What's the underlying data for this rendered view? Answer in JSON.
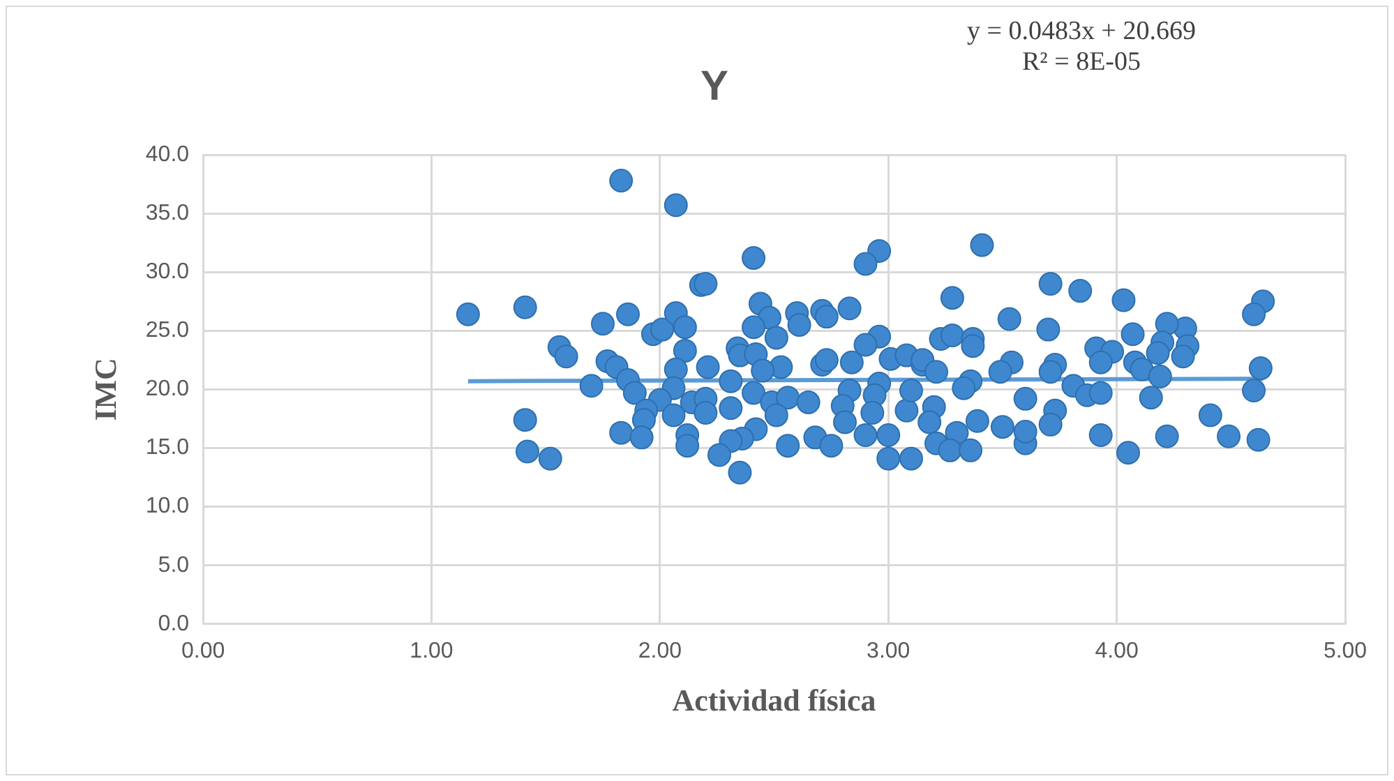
{
  "chart_data": {
    "type": "scatter",
    "title": "Y",
    "xlabel": "Actividad física",
    "ylabel": "IMC",
    "annotations": [
      "y = 0.0483x + 20.669",
      "R² = 8E-05"
    ],
    "xlim": [
      0,
      5
    ],
    "xticks": [
      {
        "value": 0,
        "label": "0.00"
      },
      {
        "value": 1,
        "label": "1.00"
      },
      {
        "value": 2,
        "label": "2.00"
      },
      {
        "value": 3,
        "label": "3.00"
      },
      {
        "value": 4,
        "label": "4.00"
      },
      {
        "value": 5,
        "label": "5.00"
      }
    ],
    "ylim": [
      0,
      40
    ],
    "yticks": [
      {
        "value": 0,
        "label": "0.0"
      },
      {
        "value": 5,
        "label": "5.0"
      },
      {
        "value": 10,
        "label": "10.0"
      },
      {
        "value": 15,
        "label": "15.0"
      },
      {
        "value": 20,
        "label": "20.0"
      },
      {
        "value": 25,
        "label": "25.0"
      },
      {
        "value": 30,
        "label": "30.0"
      },
      {
        "value": 35,
        "label": "35.0"
      },
      {
        "value": 40,
        "label": "40.0"
      }
    ],
    "grid": true,
    "legend": false,
    "series": [
      {
        "marker": "circle",
        "color": "#3f88cf",
        "x": [
          1.83,
          2.07,
          1.16,
          1.41,
          1.75,
          1.86,
          1.97,
          2.01,
          2.07,
          2.11,
          2.18,
          1.56,
          1.59,
          2.11,
          1.77,
          1.81,
          1.7,
          1.86,
          1.89,
          2.07,
          2.06,
          2.0,
          1.94,
          1.93,
          2.06,
          2.14,
          1.41,
          1.42,
          1.52,
          1.83,
          1.92,
          2.12,
          2.12,
          2.41,
          2.2,
          2.96,
          2.9,
          2.44,
          2.48,
          2.41,
          2.51,
          2.6,
          2.61,
          2.71,
          2.83,
          2.73,
          2.34,
          2.35,
          2.42,
          2.96,
          2.9,
          3.01,
          3.08,
          3.15,
          2.84,
          2.71,
          2.73,
          2.53,
          2.45,
          2.21,
          2.31,
          2.41,
          2.2,
          2.2,
          2.31,
          2.49,
          2.56,
          2.51,
          2.65,
          2.83,
          2.8,
          2.96,
          2.94,
          2.93,
          2.81,
          2.9,
          3.0,
          3.08,
          3.1,
          2.42,
          2.36,
          2.31,
          2.26,
          2.35,
          2.56,
          2.68,
          2.75,
          3.0,
          3.1,
          3.41,
          3.71,
          3.84,
          4.03,
          3.28,
          3.53,
          3.7,
          3.23,
          3.28,
          3.37,
          3.37,
          3.91,
          3.98,
          3.93,
          4.07,
          4.08,
          3.54,
          3.49,
          3.73,
          3.71,
          3.15,
          3.21,
          3.36,
          3.33,
          3.81,
          3.87,
          3.93,
          3.6,
          3.73,
          3.71,
          3.2,
          3.18,
          3.39,
          3.5,
          3.3,
          3.21,
          3.27,
          3.36,
          3.6,
          3.6,
          3.93,
          4.05,
          4.64,
          4.6,
          4.3,
          4.22,
          4.2,
          4.18,
          4.31,
          4.29,
          4.11,
          4.19,
          4.63,
          4.6,
          4.15,
          4.41,
          4.22,
          4.49,
          4.62
        ],
        "values": [
          37.8,
          35.7,
          26.4,
          27.0,
          25.6,
          26.4,
          24.7,
          25.1,
          26.5,
          25.3,
          28.9,
          23.6,
          22.8,
          23.3,
          22.4,
          21.9,
          20.3,
          20.8,
          19.7,
          21.7,
          20.1,
          19.1,
          18.2,
          17.4,
          17.8,
          18.9,
          17.4,
          14.7,
          14.1,
          16.3,
          15.9,
          16.1,
          15.2,
          31.2,
          29.0,
          31.8,
          30.7,
          27.3,
          26.1,
          25.3,
          24.4,
          26.5,
          25.5,
          26.7,
          26.9,
          26.2,
          23.5,
          22.9,
          23.0,
          24.5,
          23.8,
          22.6,
          22.9,
          22.1,
          22.3,
          22.1,
          22.5,
          21.9,
          21.6,
          21.9,
          20.7,
          19.7,
          19.2,
          18.0,
          18.4,
          18.9,
          19.3,
          17.8,
          18.9,
          19.9,
          18.6,
          20.5,
          19.5,
          18.0,
          17.2,
          16.1,
          16.1,
          18.2,
          19.9,
          16.6,
          15.8,
          15.6,
          14.4,
          12.9,
          15.2,
          15.9,
          15.2,
          14.1,
          14.1,
          32.3,
          29.0,
          28.4,
          27.6,
          27.8,
          26.0,
          25.1,
          24.3,
          24.6,
          24.3,
          23.7,
          23.5,
          23.2,
          22.3,
          24.7,
          22.3,
          22.3,
          21.5,
          22.1,
          21.5,
          22.5,
          21.5,
          20.7,
          20.1,
          20.3,
          19.5,
          19.7,
          19.2,
          18.2,
          17.0,
          18.5,
          17.2,
          17.3,
          16.8,
          16.3,
          15.4,
          14.8,
          14.8,
          15.4,
          16.4,
          16.1,
          14.6,
          27.5,
          26.4,
          25.2,
          25.6,
          24.0,
          23.1,
          23.7,
          22.8,
          21.7,
          21.1,
          21.8,
          19.9,
          19.3,
          17.8,
          16.0,
          16.0,
          15.7
        ]
      },
      {
        "type": "line",
        "marker": "none",
        "color": "#5b9bd5",
        "x": [
          1.16,
          4.64
        ],
        "values": [
          20.7,
          20.9
        ]
      }
    ]
  }
}
